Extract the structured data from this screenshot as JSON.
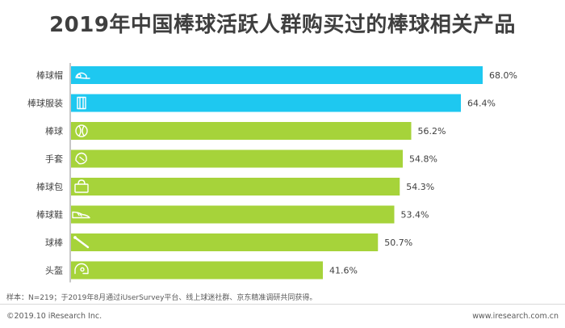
{
  "title": "2019年中国棒球活跃人群购买过的棒球相关产品",
  "footnote": "样本：N=219；于2019年8月通过iUserSurvey平台、线上球迷社群、京东精准调研共同获得。",
  "copyright": "©2019.10 iResearch Inc.",
  "website": "www.iresearch.com.cn",
  "colors": {
    "top": "#1ec8f0",
    "rest": "#a6d33a",
    "axis": "#8c8c8c",
    "icon": "#ffffff"
  },
  "chart_data": {
    "type": "bar",
    "orientation": "horizontal",
    "categories": [
      "棒球帽",
      "棒球服装",
      "棒球",
      "手套",
      "棒球包",
      "棒球鞋",
      "球棒",
      "头盔"
    ],
    "values": [
      68.0,
      64.4,
      56.2,
      54.8,
      54.3,
      53.4,
      50.7,
      41.6
    ],
    "value_labels": [
      "68.0%",
      "64.4%",
      "56.2%",
      "54.8%",
      "54.3%",
      "53.4%",
      "50.7%",
      "41.6%"
    ],
    "icons": [
      "cap-icon",
      "jersey-icon",
      "ball-icon",
      "glove-icon",
      "bag-icon",
      "shoe-icon",
      "bat-icon",
      "helmet-icon"
    ],
    "highlight_count": 2,
    "xlim": [
      0,
      68.0
    ]
  }
}
